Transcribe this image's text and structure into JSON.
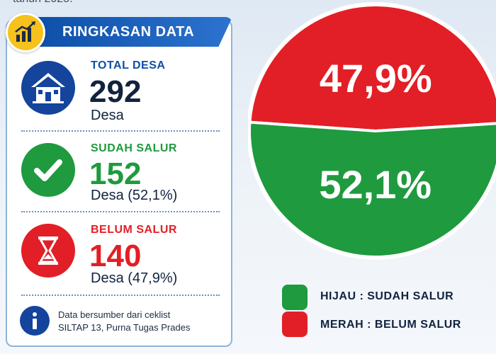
{
  "header_partial": "tahun 2025.",
  "summary": {
    "title": "RINGKASAN DATA",
    "total": {
      "label": "TOTAL DESA",
      "value": "292",
      "unit": "Desa"
    },
    "done": {
      "label": "SUDAH SALUR",
      "value": "152",
      "unit": "Desa (52,1%)"
    },
    "pending": {
      "label": "BELUM SALUR",
      "value": "140",
      "unit": "Desa (47,9%)"
    },
    "note_line1": "Data bersumber dari ceklist",
    "note_line2": "SILTAP 13, Purna Tugas Prades"
  },
  "colors": {
    "green": "#1f9a3e",
    "red": "#e21f26",
    "navy": "#12233f",
    "blue": "#0d4fa8"
  },
  "icons": [
    "chart-growth-icon",
    "house-icon",
    "checkmark-icon",
    "hourglass-icon",
    "info-icon"
  ],
  "chart_data": {
    "type": "pie",
    "slices": [
      {
        "label": "HIJAU : SUDAH SALUR",
        "value": 52.1,
        "display": "52,1%",
        "color": "#1f9a3e"
      },
      {
        "label": "MERAH : BELUM SALUR",
        "value": 47.9,
        "display": "47,9%",
        "color": "#e21f26"
      }
    ],
    "legend_placement": "bottom"
  }
}
